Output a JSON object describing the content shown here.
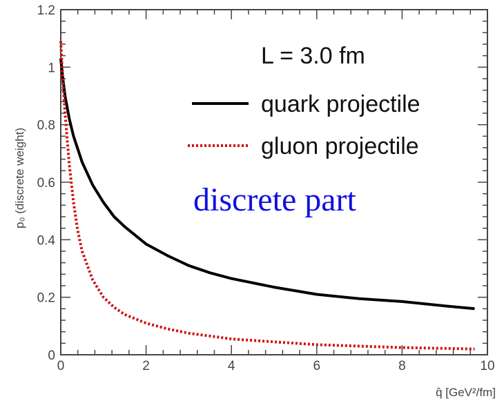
{
  "chart_data": {
    "type": "line",
    "title": "",
    "xlabel": "q̂ [GeV²/fm]",
    "ylabel": "p₀ (discrete weight)",
    "xlim": [
      0,
      10
    ],
    "ylim": [
      0,
      1.2
    ],
    "x_ticks": [
      "0",
      "2",
      "4",
      "6",
      "8",
      "10"
    ],
    "y_ticks": [
      "0",
      "0.2",
      "0.4",
      "0.6",
      "0.8",
      "1",
      "1.2"
    ],
    "grid": false,
    "legend_title": "L = 3.0 fm",
    "legend_position": "top-right",
    "annotation": "discrete part",
    "annotation_color": "#1010e0",
    "series": [
      {
        "name": "quark projectile",
        "style": "solid",
        "color": "#000000",
        "x": [
          0.0,
          0.05,
          0.1,
          0.2,
          0.3,
          0.5,
          0.75,
          1.0,
          1.25,
          1.5,
          2.0,
          2.5,
          3.0,
          3.5,
          4.0,
          5.0,
          6.0,
          7.0,
          8.0,
          9.0,
          9.7
        ],
        "y": [
          1.03,
          0.96,
          0.9,
          0.82,
          0.76,
          0.67,
          0.59,
          0.53,
          0.48,
          0.445,
          0.385,
          0.345,
          0.31,
          0.285,
          0.265,
          0.235,
          0.21,
          0.195,
          0.185,
          0.17,
          0.16
        ]
      },
      {
        "name": "gluon projectile",
        "style": "dotted",
        "color": "#d01010",
        "x": [
          0.0,
          0.05,
          0.1,
          0.2,
          0.3,
          0.4,
          0.5,
          0.75,
          1.0,
          1.25,
          1.5,
          2.0,
          2.5,
          3.0,
          3.5,
          4.0,
          5.0,
          6.0,
          7.0,
          8.0,
          9.0,
          9.7
        ],
        "y": [
          1.09,
          0.95,
          0.84,
          0.66,
          0.53,
          0.43,
          0.36,
          0.26,
          0.2,
          0.165,
          0.14,
          0.11,
          0.09,
          0.075,
          0.065,
          0.055,
          0.045,
          0.035,
          0.03,
          0.025,
          0.022,
          0.02
        ]
      }
    ]
  }
}
